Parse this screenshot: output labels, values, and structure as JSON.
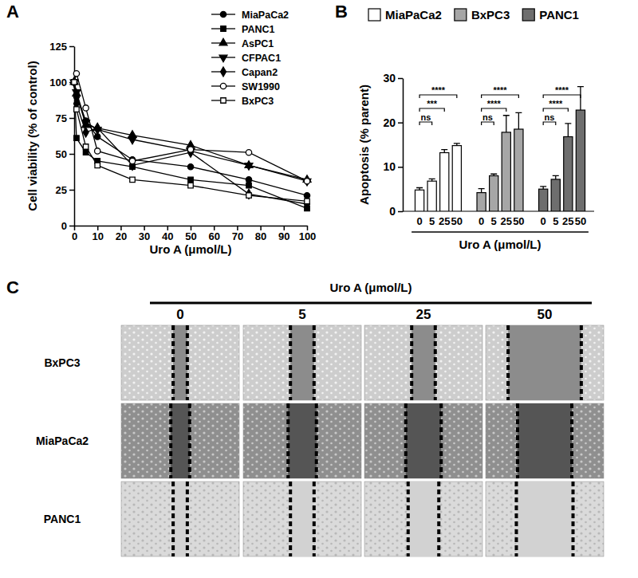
{
  "chart_data": [
    {
      "panel_label": "A",
      "type": "line",
      "x_label": "Uro A (μmol/L)",
      "y_label": "Cell viability (% of control)",
      "x": [
        0,
        1,
        5,
        10,
        25,
        50,
        75,
        100
      ],
      "series": [
        {
          "name": "MiaPaCa2",
          "color": "#000000",
          "marker": "circle",
          "values": [
            100,
            90,
            73,
            62,
            46,
            41,
            32,
            21
          ]
        },
        {
          "name": "PANC1",
          "color": "#000000",
          "marker": "square",
          "values": [
            100,
            61,
            51,
            45,
            41,
            32,
            28,
            12
          ]
        },
        {
          "name": "AsPC1",
          "color": "#000000",
          "marker": "triangle-up",
          "values": [
            100,
            92,
            70,
            68,
            63,
            56,
            42,
            32
          ]
        },
        {
          "name": "CFPAC1",
          "color": "#000000",
          "marker": "triangle-down",
          "values": [
            100,
            93,
            72,
            67,
            60,
            52,
            42,
            31
          ]
        },
        {
          "name": "Capan2",
          "color": "#000000",
          "marker": "diamond",
          "values": [
            100,
            85,
            65,
            68,
            42,
            51,
            22,
            15
          ]
        },
        {
          "name": "SW1990",
          "color": "#000000",
          "marker": "circle-open",
          "values": [
            100,
            106,
            82,
            52,
            45,
            53,
            51,
            31
          ]
        },
        {
          "name": "BxPC3",
          "color": "#000000",
          "marker": "square-open",
          "values": [
            100,
            81,
            55,
            42,
            32,
            28,
            21,
            17
          ]
        }
      ],
      "xlim": [
        0,
        100
      ],
      "xticks": [
        0,
        10,
        20,
        30,
        40,
        50,
        60,
        70,
        80,
        90,
        100
      ],
      "ylim": [
        0,
        125
      ],
      "yticks": [
        0,
        25,
        50,
        75,
        100,
        125
      ],
      "legend": "upper right",
      "grid": false
    },
    {
      "panel_label": "B",
      "type": "bar",
      "x_label": "Uro A (μmol/L)",
      "y_label": "Apoptosis (% parent)",
      "categories": [
        "0",
        "5",
        "25",
        "50"
      ],
      "series": [
        {
          "name": "MiaPaCa2",
          "color": "#ffffff",
          "values": [
            4.8,
            6.8,
            13.2,
            14.8
          ],
          "errors": [
            0.5,
            0.5,
            0.7,
            0.5
          ]
        },
        {
          "name": "BxPC3",
          "color": "#a6a6a6",
          "values": [
            4.2,
            8.0,
            17.8,
            18.5
          ],
          "errors": [
            0.9,
            0.4,
            3.8,
            3.7
          ]
        },
        {
          "name": "PANC1",
          "color": "#6e6e6e",
          "values": [
            5.0,
            7.2,
            16.8,
            22.8
          ],
          "errors": [
            0.6,
            0.8,
            3.0,
            5.3
          ]
        }
      ],
      "annotations": [
        {
          "series": "MiaPaCa2",
          "from": "0",
          "to": "5",
          "text": "ns"
        },
        {
          "series": "MiaPaCa2",
          "from": "0",
          "to": "25",
          "text": "***"
        },
        {
          "series": "MiaPaCa2",
          "from": "0",
          "to": "50",
          "text": "****"
        },
        {
          "series": "BxPC3",
          "from": "0",
          "to": "5",
          "text": "ns"
        },
        {
          "series": "BxPC3",
          "from": "0",
          "to": "25",
          "text": "****"
        },
        {
          "series": "BxPC3",
          "from": "0",
          "to": "50",
          "text": "****"
        },
        {
          "series": "PANC1",
          "from": "0",
          "to": "5",
          "text": "ns"
        },
        {
          "series": "PANC1",
          "from": "0",
          "to": "25",
          "text": "****"
        },
        {
          "series": "PANC1",
          "from": "0",
          "to": "50",
          "text": "****"
        }
      ],
      "ylim": [
        0,
        30
      ],
      "yticks": [
        0,
        10,
        20,
        30
      ],
      "legend": "top",
      "grid": false
    }
  ],
  "image_panel": {
    "panel_label": "C",
    "title": "Uro A (μmol/L)",
    "columns": [
      "0",
      "5",
      "25",
      "50"
    ],
    "rows": [
      "BxPC3",
      "MiaPaCa2",
      "PANC1"
    ]
  }
}
